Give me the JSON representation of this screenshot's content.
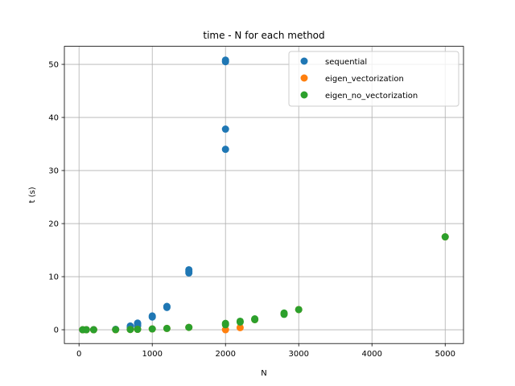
{
  "chart_data": {
    "type": "scatter",
    "title": "time - N for each method",
    "xlabel": "N",
    "ylabel": "t (s)",
    "xlim": [
      -200,
      5250
    ],
    "ylim": [
      -2.6,
      53.4
    ],
    "xticks": [
      0,
      1000,
      2000,
      3000,
      4000,
      5000
    ],
    "yticks": [
      0,
      10,
      20,
      30,
      40,
      50
    ],
    "grid": true,
    "legend_position": "upper right",
    "series": [
      {
        "name": "sequential",
        "color": "#1f77b4",
        "points": [
          [
            50,
            0.0
          ],
          [
            100,
            0.01
          ],
          [
            200,
            0.02
          ],
          [
            500,
            0.08
          ],
          [
            700,
            0.35
          ],
          [
            700,
            0.7
          ],
          [
            800,
            0.75
          ],
          [
            800,
            1.1
          ],
          [
            800,
            1.25
          ],
          [
            1000,
            2.4
          ],
          [
            1000,
            2.6
          ],
          [
            1200,
            4.2
          ],
          [
            1200,
            4.4
          ],
          [
            1500,
            10.7
          ],
          [
            1500,
            11.0
          ],
          [
            1500,
            11.3
          ],
          [
            2000,
            34.0
          ],
          [
            2000,
            37.8
          ],
          [
            2000,
            50.5
          ],
          [
            2000,
            50.8
          ]
        ]
      },
      {
        "name": "eigen_vectorization",
        "color": "#ff7f0e",
        "points": [
          [
            50,
            0.0
          ],
          [
            100,
            0.0
          ],
          [
            200,
            0.0
          ],
          [
            500,
            0.0
          ],
          [
            700,
            0.05
          ],
          [
            800,
            0.08
          ],
          [
            1000,
            0.15
          ],
          [
            1200,
            0.25
          ],
          [
            1500,
            0.45
          ],
          [
            2000,
            0.0
          ],
          [
            2200,
            0.4
          ],
          [
            2400,
            1.9
          ],
          [
            2800,
            3.0
          ],
          [
            3000,
            3.8
          ],
          [
            5000,
            17.5
          ]
        ]
      },
      {
        "name": "eigen_no_vectorization",
        "color": "#2ca02c",
        "points": [
          [
            50,
            0.0
          ],
          [
            100,
            0.0
          ],
          [
            200,
            0.0
          ],
          [
            500,
            0.02
          ],
          [
            700,
            0.05
          ],
          [
            800,
            0.08
          ],
          [
            1000,
            0.15
          ],
          [
            1200,
            0.25
          ],
          [
            1500,
            0.45
          ],
          [
            2000,
            0.95
          ],
          [
            2000,
            1.2
          ],
          [
            2200,
            1.45
          ],
          [
            2200,
            1.6
          ],
          [
            2400,
            1.9
          ],
          [
            2400,
            2.05
          ],
          [
            2800,
            2.9
          ],
          [
            2800,
            3.15
          ],
          [
            3000,
            3.8
          ],
          [
            5000,
            17.5
          ]
        ]
      }
    ]
  }
}
